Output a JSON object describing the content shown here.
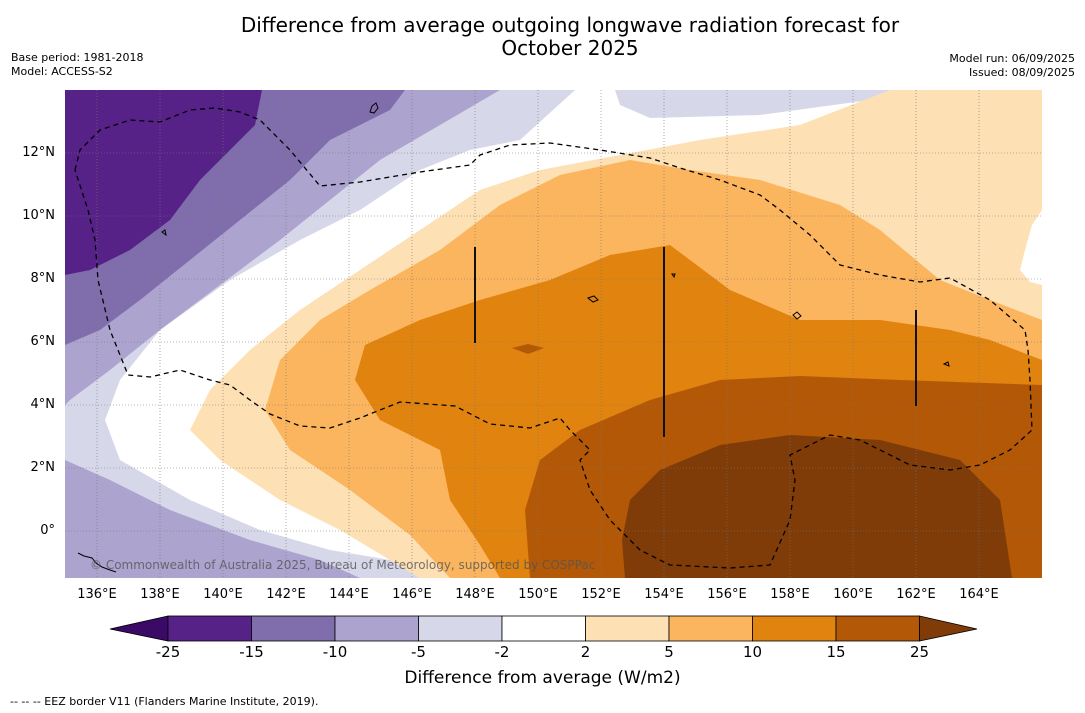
{
  "title_line1": "Difference from average outgoing longwave radiation forecast for",
  "title_line2": "October 2025",
  "base_period": "Base period: 1981-2018",
  "model": "Model: ACCESS-S2",
  "model_run": "Model run: 06/09/2025",
  "issued": "Issued: 08/09/2025",
  "copyright": "© Commonwealth of Australia 2025, Bureau of Meteorology, supported by COSPPac",
  "colorbar_title": "Difference from average (W/m2)",
  "footer": "-- -- -- EEZ border V11 (Flanders Marine Institute, 2019).",
  "chart_data": {
    "type": "heatmap",
    "lon_range": [
      135,
      166
    ],
    "lat_range": [
      -1.5,
      14
    ],
    "x_ticks": [
      "136°E",
      "138°E",
      "140°E",
      "142°E",
      "144°E",
      "146°E",
      "148°E",
      "150°E",
      "152°E",
      "154°E",
      "156°E",
      "158°E",
      "160°E",
      "162°E",
      "164°E"
    ],
    "y_ticks": [
      "12°N",
      "10°N",
      "8°N",
      "6°N",
      "4°N",
      "2°N",
      "0°"
    ],
    "levels": [
      "-25",
      "-15",
      "-10",
      "-5",
      "-2",
      "2",
      "5",
      "10",
      "15",
      "25"
    ],
    "colors": [
      "#3a0a66",
      "#562288",
      "#7f6eab",
      "#aca4cf",
      "#d7d7ea",
      "#ffffff",
      "#fde0b3",
      "#fbb55f",
      "#e0830f",
      "#b35806",
      "#7f3b08",
      "#8a4a0a"
    ],
    "grid": true
  }
}
